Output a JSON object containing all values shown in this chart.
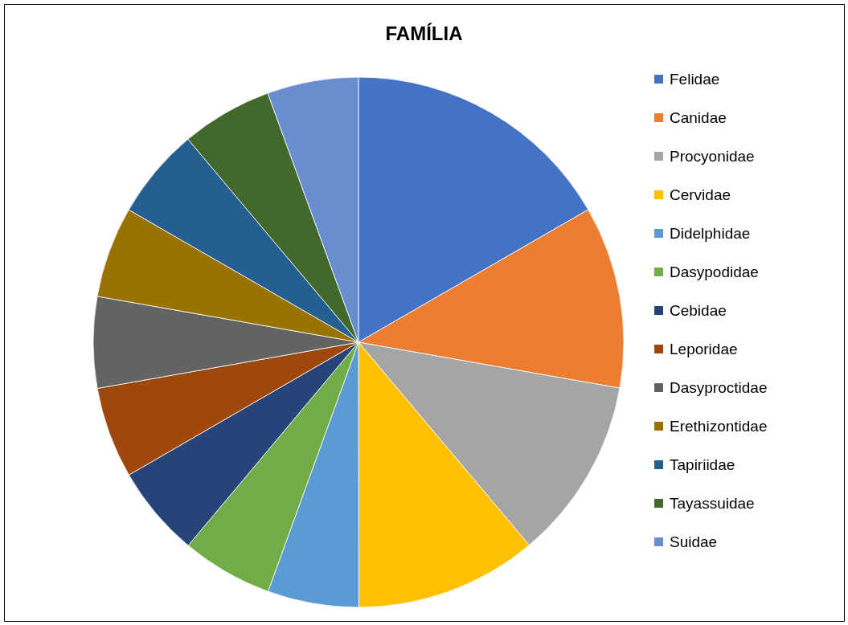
{
  "chart_data": {
    "type": "pie",
    "title": "FAMÍLIA",
    "categories": [
      "Felidae",
      "Canidae",
      "Procyonidae",
      "Cervidae",
      "Didelphidae",
      "Dasypodidae",
      "Cebidae",
      "Leporidae",
      "Dasyproctidae",
      "Erethizontidae",
      "Tapiriidae",
      "Tayassuidae",
      "Suidae"
    ],
    "values": [
      16.67,
      11.11,
      11.11,
      11.11,
      5.56,
      5.56,
      5.56,
      5.56,
      5.56,
      5.56,
      5.56,
      5.56,
      5.56
    ],
    "colors": [
      "#4472c4",
      "#ed7d31",
      "#a5a5a5",
      "#ffc000",
      "#5b9bd5",
      "#70ad47",
      "#264478",
      "#9e480e",
      "#636363",
      "#997300",
      "#255e91",
      "#43682b",
      "#698ed0"
    ],
    "legend": "right"
  }
}
